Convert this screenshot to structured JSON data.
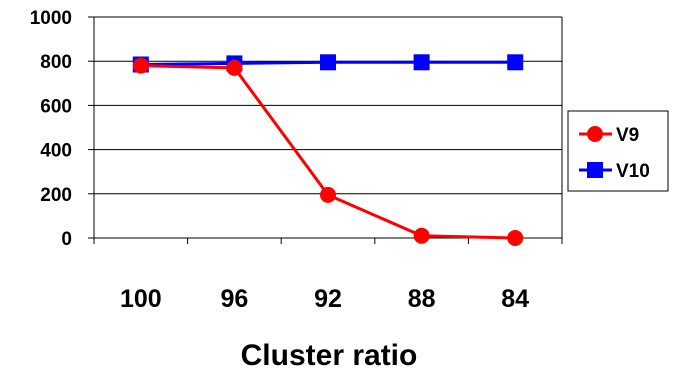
{
  "chart_data": {
    "type": "line",
    "categories": [
      "100",
      "96",
      "92",
      "88",
      "84"
    ],
    "xlabel": "Cluster ratio",
    "ylabel": "",
    "ylim": [
      0,
      1000
    ],
    "yticks": [
      "0",
      "200",
      "400",
      "600",
      "800",
      "1000"
    ],
    "grid": "horizontal",
    "legend_position": "right",
    "series": [
      {
        "name": "V9",
        "values": [
          780,
          770,
          195,
          10,
          0
        ],
        "color": "#ff0000",
        "marker": "circle"
      },
      {
        "name": "V10",
        "values": [
          785,
          790,
          795,
          795,
          795
        ],
        "color": "#0000ff",
        "marker": "square"
      }
    ]
  }
}
